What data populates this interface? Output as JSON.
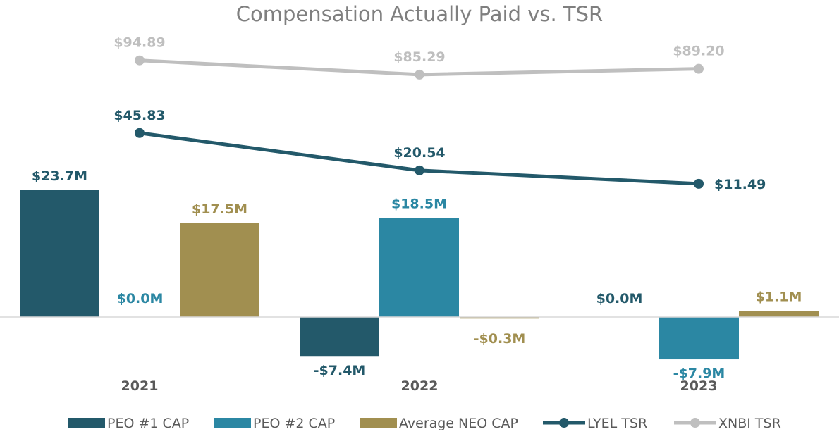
{
  "chart_data": {
    "type": "bar",
    "title": "Compensation Actually Paid vs. TSR",
    "categories": [
      "2021",
      "2022",
      "2023"
    ],
    "bar_series": [
      {
        "name": "PEO #1 CAP",
        "color": "#23596a",
        "values": [
          23.7,
          -7.4,
          0.0
        ],
        "labels": [
          "$23.7M",
          "-$7.4M",
          "$0.0M"
        ]
      },
      {
        "name": "PEO #2 CAP",
        "color": "#2b87a3",
        "values": [
          0.0,
          18.5,
          -7.9
        ],
        "labels": [
          "$0.0M",
          "$18.5M",
          "-$7.9M"
        ]
      },
      {
        "name": "Average NEO CAP",
        "color": "#a18f50",
        "values": [
          17.5,
          -0.3,
          1.1
        ],
        "labels": [
          "$17.5M",
          "-$0.3M",
          "$1.1M"
        ]
      }
    ],
    "line_series": [
      {
        "name": "LYEL TSR",
        "color": "#23596a",
        "values": [
          45.83,
          20.54,
          11.49
        ],
        "labels": [
          "$45.83",
          "$20.54",
          "$11.49"
        ]
      },
      {
        "name": "XNBI TSR",
        "color": "#bfbfbf",
        "values": [
          94.89,
          85.29,
          89.2
        ],
        "labels": [
          "$94.89",
          "$85.29",
          "$89.20"
        ]
      }
    ],
    "bar_axis_unit": "$M",
    "grid": false,
    "legend_position": "bottom"
  }
}
